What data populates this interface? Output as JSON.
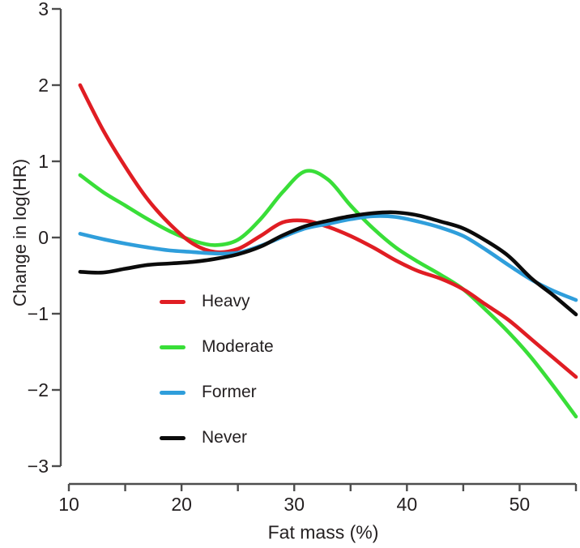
{
  "chart_data": {
    "type": "line",
    "title": "",
    "xlabel": "Fat mass (%)",
    "ylabel": "Change in log(HR)",
    "xlim": [
      10,
      55.5
    ],
    "ylim": [
      -3,
      3
    ],
    "grid": false,
    "legend_position": "inside-lower-left",
    "yticks": [
      3,
      2,
      1,
      0,
      -1,
      -2,
      -3
    ],
    "ytick_labels": [
      "3",
      "2",
      "1",
      "0",
      "−1",
      "−2",
      "−3"
    ],
    "xticks": [
      10,
      15,
      20,
      25,
      30,
      35,
      40,
      45,
      50,
      55
    ],
    "xtick_labels": [
      "10",
      "",
      "20",
      "",
      "30",
      "",
      "40",
      "",
      "50",
      ""
    ],
    "x": [
      11,
      13,
      15,
      17,
      19,
      21,
      23,
      25,
      27,
      29,
      31,
      33,
      35,
      37,
      39,
      41,
      43,
      45,
      47,
      49,
      51,
      53,
      55
    ],
    "series": [
      {
        "name": "Heavy",
        "color": "#e01d23",
        "values": [
          2.0,
          1.42,
          0.93,
          0.5,
          0.17,
          -0.08,
          -0.19,
          -0.15,
          0.02,
          0.2,
          0.22,
          0.14,
          0.02,
          -0.13,
          -0.3,
          -0.44,
          -0.54,
          -0.68,
          -0.88,
          -1.08,
          -1.33,
          -1.58,
          -1.83
        ]
      },
      {
        "name": "Moderate",
        "color": "#39de38",
        "values": [
          0.82,
          0.6,
          0.42,
          0.24,
          0.08,
          -0.04,
          -0.1,
          -0.03,
          0.24,
          0.6,
          0.87,
          0.76,
          0.42,
          0.12,
          -0.13,
          -0.32,
          -0.49,
          -0.68,
          -0.95,
          -1.24,
          -1.57,
          -1.95,
          -2.35
        ]
      },
      {
        "name": "Former",
        "color": "#2f9edb",
        "values": [
          0.05,
          -0.02,
          -0.08,
          -0.13,
          -0.17,
          -0.19,
          -0.21,
          -0.2,
          -0.11,
          0.01,
          0.12,
          0.18,
          0.24,
          0.28,
          0.27,
          0.21,
          0.13,
          0.02,
          -0.16,
          -0.36,
          -0.55,
          -0.7,
          -0.82
        ]
      },
      {
        "name": "Never",
        "color": "#0b0b0b",
        "values": [
          -0.45,
          -0.46,
          -0.41,
          -0.36,
          -0.34,
          -0.32,
          -0.28,
          -0.22,
          -0.12,
          0.03,
          0.15,
          0.22,
          0.28,
          0.32,
          0.33,
          0.29,
          0.21,
          0.12,
          -0.04,
          -0.24,
          -0.53,
          -0.76,
          -1.01
        ]
      }
    ],
    "axis_color": "#4d4d4d",
    "text_color": "#231f20"
  }
}
